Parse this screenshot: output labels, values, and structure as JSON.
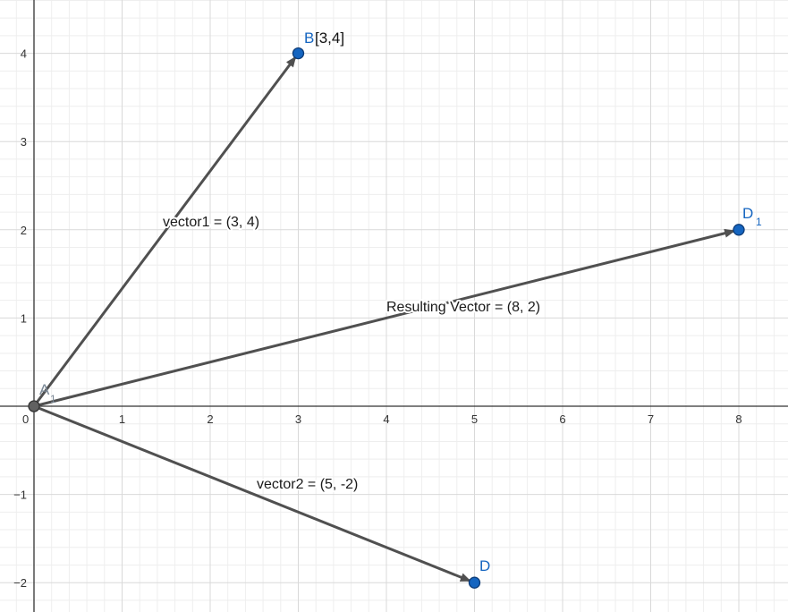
{
  "graph": {
    "x_range": [
      0,
      8
    ],
    "y_range": [
      -2,
      4
    ],
    "x_ticks": [
      "0",
      "1",
      "2",
      "3",
      "4",
      "5",
      "6",
      "7",
      "8"
    ],
    "y_ticks": [
      "−2",
      "−1",
      "1",
      "2",
      "3",
      "4"
    ],
    "grid": "on",
    "colors": {
      "point_fill": "#1565C0",
      "point_label": "#1565C0",
      "origin_point_fill": "#616161",
      "vector_stroke": "#505050",
      "major_grid": "#d9d9d9",
      "minor_grid": "#eeeeee",
      "axis": "#333333"
    }
  },
  "points": {
    "A": {
      "label": "A",
      "sub": "1",
      "x": 0,
      "y": 0
    },
    "B": {
      "label": "B",
      "extra": "[3,4]",
      "x": 3,
      "y": 4
    },
    "D": {
      "label": "D",
      "x": 5,
      "y": -2
    },
    "D1": {
      "label": "D",
      "sub": "1",
      "x": 8,
      "y": 2
    }
  },
  "vectors": [
    {
      "id": "vector1",
      "from": [
        0,
        0
      ],
      "to": [
        3,
        4
      ],
      "label": "vector1 = (3, 4)"
    },
    {
      "id": "vector2",
      "from": [
        0,
        0
      ],
      "to": [
        5,
        -2
      ],
      "label": "vector2 = (5, -2)"
    },
    {
      "id": "resulting",
      "from": [
        0,
        0
      ],
      "to": [
        8,
        2
      ],
      "label": "Resulting Vector = (8, 2)"
    }
  ]
}
